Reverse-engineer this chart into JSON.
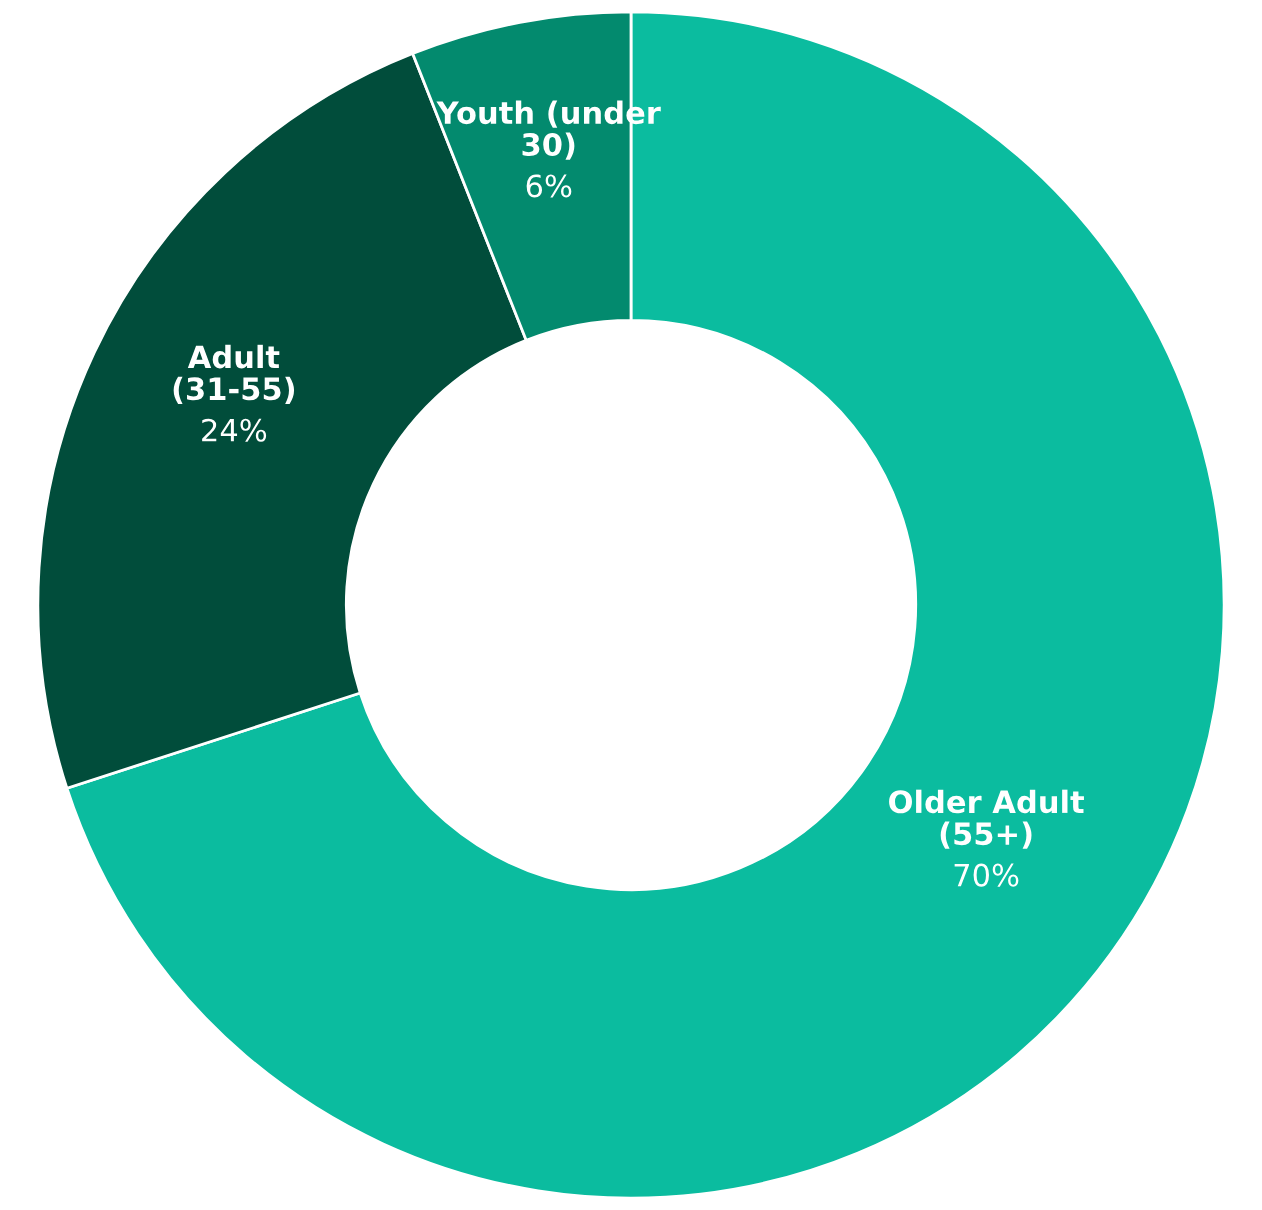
{
  "chart_data": {
    "type": "donut",
    "categories": [
      "Older Adult (55+)",
      "Adult (31-55)",
      "Youth (under 30)"
    ],
    "values": [
      70,
      24,
      6
    ],
    "value_labels": [
      "70%",
      "24%",
      "6%"
    ],
    "colors": [
      "#0bbc9f",
      "#014d3b",
      "#038a6e"
    ],
    "legend": false
  }
}
